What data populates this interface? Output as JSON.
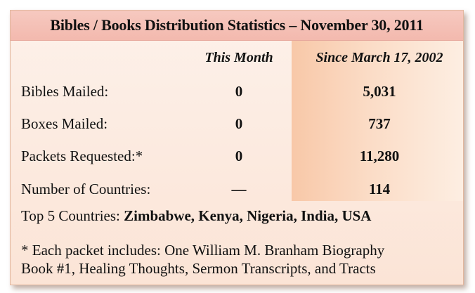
{
  "title": "Bibles / Books Distribution Statistics – November 30, 2011",
  "columns": {
    "this_month": "This Month",
    "since": "Since March 17, 2002"
  },
  "rows": [
    {
      "label": "Bibles Mailed:",
      "this_month": "0",
      "since": "5,031"
    },
    {
      "label": "Boxes Mailed:",
      "this_month": "0",
      "since": "737"
    },
    {
      "label": "Packets Requested:*",
      "this_month": "0",
      "since": "11,280"
    },
    {
      "label": "Number of Countries:",
      "this_month": "—",
      "since": "114"
    }
  ],
  "top_countries": {
    "label": "Top 5 Countries:",
    "value": "Zimbabwe, Kenya, Nigeria, India, USA"
  },
  "footnote": {
    "line1": "* Each packet includes: One William M. Branham Biography",
    "line2": "Book #1, Healing Thoughts, Sermon Transcripts,  and Tracts"
  }
}
